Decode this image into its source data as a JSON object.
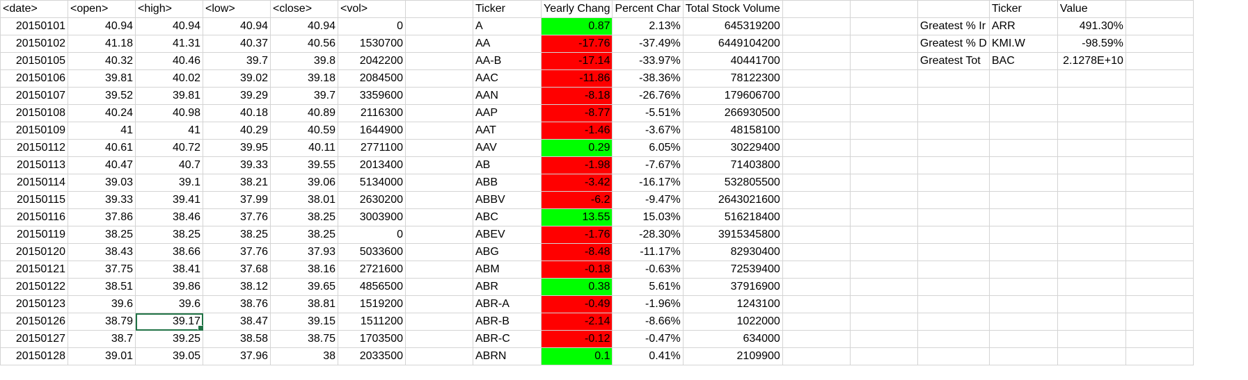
{
  "sheet": {
    "headers": [
      "<date>",
      "<open>",
      "<high>",
      "<low>",
      "<close>",
      "<vol>",
      "",
      "Ticker",
      "Yearly Chang",
      "Percent Char",
      "Total Stock Volume",
      "",
      "",
      "",
      "Ticker",
      "Value",
      ""
    ],
    "rows": [
      [
        "20150101",
        "40.94",
        "40.94",
        "40.94",
        "40.94",
        "0",
        "",
        "A",
        "0.87",
        "2.13%",
        "645319200",
        "",
        "",
        "Greatest % Ir",
        "ARR",
        "491.30%",
        ""
      ],
      [
        "20150102",
        "41.18",
        "41.31",
        "40.37",
        "40.56",
        "1530700",
        "",
        "AA",
        "-17.76",
        "-37.49%",
        "6449104200",
        "",
        "",
        "Greatest % D",
        "KMI.W",
        "-98.59%",
        ""
      ],
      [
        "20150105",
        "40.32",
        "40.46",
        "39.7",
        "39.8",
        "2042200",
        "",
        "AA-B",
        "-17.14",
        "-33.97%",
        "40441700",
        "",
        "",
        "Greatest Tot",
        "BAC",
        "2.1278E+10",
        ""
      ],
      [
        "20150106",
        "39.81",
        "40.02",
        "39.02",
        "39.18",
        "2084500",
        "",
        "AAC",
        "-11.86",
        "-38.36%",
        "78122300",
        "",
        "",
        "",
        "",
        "",
        ""
      ],
      [
        "20150107",
        "39.52",
        "39.81",
        "39.29",
        "39.7",
        "3359600",
        "",
        "AAN",
        "-8.18",
        "-26.76%",
        "179606700",
        "",
        "",
        "",
        "",
        "",
        ""
      ],
      [
        "20150108",
        "40.24",
        "40.98",
        "40.18",
        "40.89",
        "2116300",
        "",
        "AAP",
        "-8.77",
        "-5.51%",
        "266930500",
        "",
        "",
        "",
        "",
        "",
        ""
      ],
      [
        "20150109",
        "41",
        "41",
        "40.29",
        "40.59",
        "1644900",
        "",
        "AAT",
        "-1.46",
        "-3.67%",
        "48158100",
        "",
        "",
        "",
        "",
        "",
        ""
      ],
      [
        "20150112",
        "40.61",
        "40.72",
        "39.95",
        "40.11",
        "2771100",
        "",
        "AAV",
        "0.29",
        "6.05%",
        "30229400",
        "",
        "",
        "",
        "",
        "",
        ""
      ],
      [
        "20150113",
        "40.47",
        "40.7",
        "39.33",
        "39.55",
        "2013400",
        "",
        "AB",
        "-1.98",
        "-7.67%",
        "71403800",
        "",
        "",
        "",
        "",
        "",
        ""
      ],
      [
        "20150114",
        "39.03",
        "39.1",
        "38.21",
        "39.06",
        "5134000",
        "",
        "ABB",
        "-3.42",
        "-16.17%",
        "532805500",
        "",
        "",
        "",
        "",
        "",
        ""
      ],
      [
        "20150115",
        "39.33",
        "39.41",
        "37.99",
        "38.01",
        "2630200",
        "",
        "ABBV",
        "-6.2",
        "-9.47%",
        "2643021600",
        "",
        "",
        "",
        "",
        "",
        ""
      ],
      [
        "20150116",
        "37.86",
        "38.46",
        "37.76",
        "38.25",
        "3003900",
        "",
        "ABC",
        "13.55",
        "15.03%",
        "516218400",
        "",
        "",
        "",
        "",
        "",
        ""
      ],
      [
        "20150119",
        "38.25",
        "38.25",
        "38.25",
        "38.25",
        "0",
        "",
        "ABEV",
        "-1.76",
        "-28.30%",
        "3915345800",
        "",
        "",
        "",
        "",
        "",
        ""
      ],
      [
        "20150120",
        "38.43",
        "38.66",
        "37.76",
        "37.93",
        "5033600",
        "",
        "ABG",
        "-8.48",
        "-11.17%",
        "82930400",
        "",
        "",
        "",
        "",
        "",
        ""
      ],
      [
        "20150121",
        "37.75",
        "38.41",
        "37.68",
        "38.16",
        "2721600",
        "",
        "ABM",
        "-0.18",
        "-0.63%",
        "72539400",
        "",
        "",
        "",
        "",
        "",
        ""
      ],
      [
        "20150122",
        "38.51",
        "39.86",
        "38.12",
        "39.65",
        "4856500",
        "",
        "ABR",
        "0.38",
        "5.61%",
        "37916900",
        "",
        "",
        "",
        "",
        "",
        ""
      ],
      [
        "20150123",
        "39.6",
        "39.6",
        "38.76",
        "38.81",
        "1519200",
        "",
        "ABR-A",
        "-0.49",
        "-1.96%",
        "1243100",
        "",
        "",
        "",
        "",
        "",
        ""
      ],
      [
        "20150126",
        "38.79",
        "39.17",
        "38.47",
        "39.15",
        "1511200",
        "",
        "ABR-B",
        "-2.14",
        "-8.66%",
        "1022000",
        "",
        "",
        "",
        "",
        "",
        ""
      ],
      [
        "20150127",
        "38.7",
        "39.25",
        "38.58",
        "38.75",
        "1703500",
        "",
        "ABR-C",
        "-0.12",
        "-0.47%",
        "634000",
        "",
        "",
        "",
        "",
        "",
        ""
      ],
      [
        "20150128",
        "39.01",
        "39.05",
        "37.96",
        "38",
        "2033500",
        "",
        "ABRN",
        "0.1",
        "0.41%",
        "2109900",
        "",
        "",
        "",
        "",
        "",
        ""
      ]
    ],
    "align": [
      "num",
      "num",
      "num",
      "num",
      "num",
      "num",
      "txt",
      "txt",
      "num",
      "num",
      "num",
      "txt",
      "txt",
      "txt",
      "txt",
      "num",
      "txt"
    ],
    "header_align": [
      "txt",
      "txt",
      "txt",
      "txt",
      "txt",
      "txt",
      "txt",
      "txt",
      "txt",
      "txt",
      "txt",
      "txt",
      "txt",
      "txt",
      "txt",
      "txt",
      "txt"
    ],
    "selected_cell": {
      "row": 17,
      "col": 2
    },
    "colors": {
      "positive": "#00ff00",
      "negative": "#ff0000",
      "gridline": "#d4d4d4",
      "selection": "#217346"
    }
  }
}
